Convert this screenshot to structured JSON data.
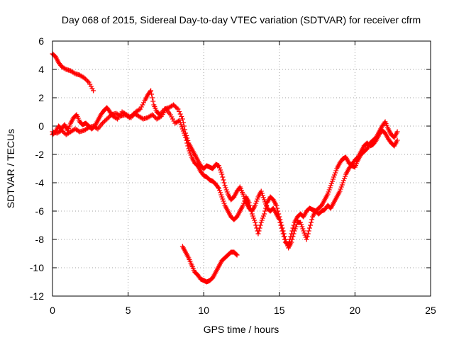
{
  "chart_data": {
    "type": "scatter",
    "title": "Day 068 of 2015, Sidereal Day-to-day VTEC variation (SDTVAR) for receiver cfrm",
    "xlabel": "GPS time / hours",
    "ylabel": "SDTVAR / TECUs",
    "xlim": [
      0,
      25
    ],
    "ylim": [
      -12,
      6
    ],
    "xticks": [
      0,
      5,
      10,
      15,
      20,
      25
    ],
    "yticks": [
      -12,
      -10,
      -8,
      -6,
      -4,
      -2,
      0,
      2,
      4,
      6
    ],
    "grid": true,
    "legend": "none",
    "marker": "plus",
    "color": "#ff0000",
    "series": [
      {
        "name": "track-a",
        "points": [
          [
            0,
            5.1
          ],
          [
            0.2,
            4.9
          ],
          [
            0.4,
            4.5
          ],
          [
            0.6,
            4.2
          ],
          [
            0.9,
            4.0
          ],
          [
            1.2,
            3.9
          ],
          [
            1.5,
            3.7
          ],
          [
            1.8,
            3.6
          ],
          [
            2.1,
            3.4
          ],
          [
            2.4,
            3.1
          ],
          [
            2.7,
            2.5
          ]
        ]
      },
      {
        "name": "track-b",
        "points": [
          [
            0,
            -0.6
          ],
          [
            0.2,
            -0.4
          ],
          [
            0.4,
            0.0
          ],
          [
            0.6,
            -0.2
          ],
          [
            0.8,
            0.1
          ],
          [
            1.0,
            -0.3
          ],
          [
            1.2,
            0.2
          ],
          [
            1.4,
            0.6
          ],
          [
            1.6,
            0.8
          ],
          [
            1.8,
            0.3
          ],
          [
            2.0,
            0.1
          ],
          [
            2.2,
            0.2
          ],
          [
            2.4,
            0.0
          ],
          [
            2.6,
            -0.2
          ],
          [
            2.8,
            0.0
          ],
          [
            3.0,
            0.4
          ],
          [
            3.2,
            0.8
          ],
          [
            3.4,
            1.1
          ],
          [
            3.6,
            1.3
          ],
          [
            3.8,
            1.0
          ],
          [
            4.0,
            0.7
          ],
          [
            4.3,
            0.5
          ],
          [
            4.6,
            1.0
          ],
          [
            4.9,
            0.8
          ],
          [
            5.2,
            0.6
          ],
          [
            5.5,
            1.0
          ],
          [
            5.8,
            1.2
          ],
          [
            6.1,
            1.8
          ],
          [
            6.3,
            2.2
          ],
          [
            6.5,
            2.5
          ],
          [
            6.7,
            1.5
          ],
          [
            6.9,
            1.0
          ],
          [
            7.1,
            0.8
          ],
          [
            7.4,
            1.2
          ],
          [
            7.7,
            1.3
          ],
          [
            8.0,
            1.5
          ],
          [
            8.3,
            1.2
          ],
          [
            8.6,
            0.5
          ],
          [
            8.8,
            -0.5
          ],
          [
            9.0,
            -1.2
          ],
          [
            9.2,
            -1.6
          ],
          [
            9.4,
            -2.0
          ],
          [
            9.6,
            -2.4
          ],
          [
            9.8,
            -2.8
          ],
          [
            10.0,
            -3.0
          ],
          [
            10.2,
            -2.8
          ],
          [
            10.4,
            -2.9
          ],
          [
            10.6,
            -3.0
          ],
          [
            10.8,
            -2.7
          ],
          [
            11.0,
            -2.8
          ],
          [
            11.2,
            -3.4
          ],
          [
            11.4,
            -4.2
          ],
          [
            11.6,
            -4.8
          ],
          [
            11.8,
            -5.2
          ],
          [
            12.0,
            -5.0
          ],
          [
            12.2,
            -4.6
          ],
          [
            12.4,
            -4.3
          ],
          [
            12.6,
            -4.8
          ],
          [
            12.8,
            -5.4
          ],
          [
            13.0,
            -5.8
          ],
          [
            13.2,
            -6.0
          ],
          [
            13.4,
            -5.6
          ],
          [
            13.6,
            -5.0
          ],
          [
            13.8,
            -4.6
          ],
          [
            14.0,
            -5.2
          ],
          [
            14.2,
            -5.8
          ],
          [
            14.4,
            -6.0
          ],
          [
            14.6,
            -5.8
          ],
          [
            14.8,
            -6.2
          ],
          [
            15.0,
            -6.6
          ],
          [
            15.2,
            -7.4
          ],
          [
            15.4,
            -8.2
          ],
          [
            15.6,
            -8.4
          ],
          [
            15.8,
            -7.6
          ],
          [
            16.0,
            -6.8
          ],
          [
            16.2,
            -6.4
          ],
          [
            16.4,
            -6.2
          ],
          [
            16.6,
            -6.4
          ],
          [
            16.8,
            -6.0
          ],
          [
            17.0,
            -5.8
          ],
          [
            17.2,
            -5.9
          ],
          [
            17.4,
            -6.0
          ],
          [
            17.6,
            -5.8
          ],
          [
            17.8,
            -5.6
          ],
          [
            18.0,
            -5.2
          ],
          [
            18.2,
            -4.8
          ],
          [
            18.4,
            -4.2
          ],
          [
            18.6,
            -3.6
          ],
          [
            18.8,
            -3.0
          ],
          [
            19.0,
            -2.6
          ],
          [
            19.2,
            -2.3
          ],
          [
            19.4,
            -2.2
          ],
          [
            19.6,
            -2.6
          ],
          [
            19.8,
            -2.8
          ],
          [
            20.0,
            -2.9
          ],
          [
            20.2,
            -2.4
          ],
          [
            20.4,
            -2.0
          ],
          [
            20.6,
            -1.8
          ],
          [
            20.8,
            -1.6
          ],
          [
            21.0,
            -1.2
          ],
          [
            21.2,
            -1.0
          ],
          [
            21.4,
            -0.8
          ],
          [
            21.6,
            -0.4
          ],
          [
            21.8,
            0.0
          ],
          [
            22.0,
            0.3
          ],
          [
            22.2,
            -0.2
          ],
          [
            22.4,
            -0.6
          ],
          [
            22.6,
            -0.8
          ],
          [
            22.8,
            -0.4
          ]
        ]
      },
      {
        "name": "track-c",
        "points": [
          [
            0,
            -0.4
          ],
          [
            0.3,
            -0.5
          ],
          [
            0.6,
            -0.3
          ],
          [
            0.9,
            -0.6
          ],
          [
            1.2,
            -0.4
          ],
          [
            1.5,
            -0.2
          ],
          [
            1.8,
            -0.4
          ],
          [
            2.1,
            -0.3
          ],
          [
            2.4,
            -0.1
          ],
          [
            2.7,
            0.0
          ],
          [
            3.0,
            -0.2
          ],
          [
            3.3,
            0.2
          ],
          [
            3.6,
            0.5
          ],
          [
            3.9,
            0.8
          ],
          [
            4.2,
            0.9
          ],
          [
            4.5,
            0.7
          ],
          [
            4.8,
            0.8
          ],
          [
            5.1,
            0.6
          ],
          [
            5.4,
            0.9
          ],
          [
            5.7,
            0.7
          ],
          [
            6.0,
            0.5
          ],
          [
            6.3,
            0.6
          ],
          [
            6.6,
            0.8
          ],
          [
            6.9,
            0.5
          ],
          [
            7.2,
            0.7
          ],
          [
            7.5,
            1.2
          ],
          [
            7.8,
            0.8
          ],
          [
            8.1,
            0.2
          ],
          [
            8.4,
            0.4
          ],
          [
            8.6,
            -0.2
          ],
          [
            8.8,
            -0.8
          ],
          [
            9.0,
            -1.6
          ],
          [
            9.2,
            -2.2
          ],
          [
            9.4,
            -2.6
          ],
          [
            9.6,
            -2.8
          ],
          [
            9.8,
            -3.2
          ],
          [
            10.0,
            -3.5
          ],
          [
            10.2,
            -3.6
          ],
          [
            10.4,
            -3.8
          ],
          [
            10.6,
            -3.9
          ],
          [
            10.8,
            -4.1
          ],
          [
            11.0,
            -4.4
          ],
          [
            11.2,
            -5.0
          ],
          [
            11.4,
            -5.6
          ],
          [
            11.6,
            -6.0
          ],
          [
            11.8,
            -6.4
          ],
          [
            12.0,
            -6.6
          ],
          [
            12.2,
            -6.4
          ],
          [
            12.4,
            -6.0
          ],
          [
            12.6,
            -5.6
          ],
          [
            12.8,
            -5.0
          ],
          [
            13.0,
            -5.4
          ],
          [
            13.2,
            -6.2
          ],
          [
            13.4,
            -6.8
          ],
          [
            13.6,
            -7.6
          ],
          [
            13.8,
            -6.8
          ],
          [
            14.0,
            -6.2
          ],
          [
            14.2,
            -5.4
          ],
          [
            14.4,
            -5.0
          ],
          [
            14.6,
            -5.2
          ],
          [
            14.8,
            -5.6
          ],
          [
            15.0,
            -6.4
          ],
          [
            15.2,
            -7.2
          ],
          [
            15.4,
            -8.0
          ],
          [
            15.6,
            -8.6
          ],
          [
            15.8,
            -8.2
          ],
          [
            16.0,
            -7.4
          ],
          [
            16.2,
            -6.8
          ],
          [
            16.4,
            -6.8
          ],
          [
            16.6,
            -7.4
          ],
          [
            16.8,
            -8.0
          ],
          [
            17.0,
            -7.2
          ],
          [
            17.2,
            -6.4
          ],
          [
            17.4,
            -6.0
          ],
          [
            17.6,
            -6.2
          ],
          [
            17.8,
            -6.0
          ],
          [
            18.0,
            -5.9
          ],
          [
            18.2,
            -5.6
          ],
          [
            18.4,
            -5.8
          ],
          [
            18.6,
            -5.4
          ],
          [
            18.8,
            -5.0
          ],
          [
            19.0,
            -4.6
          ],
          [
            19.2,
            -4.0
          ],
          [
            19.4,
            -3.4
          ],
          [
            19.6,
            -3.0
          ],
          [
            19.8,
            -2.7
          ],
          [
            20.0,
            -2.4
          ],
          [
            20.2,
            -2.2
          ],
          [
            20.4,
            -1.8
          ],
          [
            20.6,
            -1.4
          ],
          [
            20.8,
            -1.2
          ],
          [
            21.0,
            -1.4
          ],
          [
            21.2,
            -1.3
          ],
          [
            21.4,
            -1.0
          ],
          [
            21.6,
            -0.6
          ],
          [
            21.8,
            -0.3
          ],
          [
            22.0,
            -0.5
          ],
          [
            22.2,
            -0.9
          ],
          [
            22.4,
            -1.2
          ],
          [
            22.6,
            -1.4
          ],
          [
            22.8,
            -1.0
          ]
        ]
      },
      {
        "name": "track-d",
        "points": [
          [
            8.6,
            -8.5
          ],
          [
            8.8,
            -8.9
          ],
          [
            9.0,
            -9.3
          ],
          [
            9.2,
            -9.8
          ],
          [
            9.4,
            -10.3
          ],
          [
            9.6,
            -10.5
          ],
          [
            9.8,
            -10.8
          ],
          [
            10.0,
            -10.9
          ],
          [
            10.2,
            -11.0
          ],
          [
            10.4,
            -10.9
          ],
          [
            10.6,
            -10.7
          ],
          [
            10.8,
            -10.3
          ],
          [
            11.0,
            -9.9
          ],
          [
            11.2,
            -9.5
          ],
          [
            11.4,
            -9.3
          ],
          [
            11.6,
            -9.1
          ],
          [
            11.8,
            -8.9
          ],
          [
            12.0,
            -8.9
          ],
          [
            12.2,
            -9.1
          ]
        ]
      }
    ]
  }
}
